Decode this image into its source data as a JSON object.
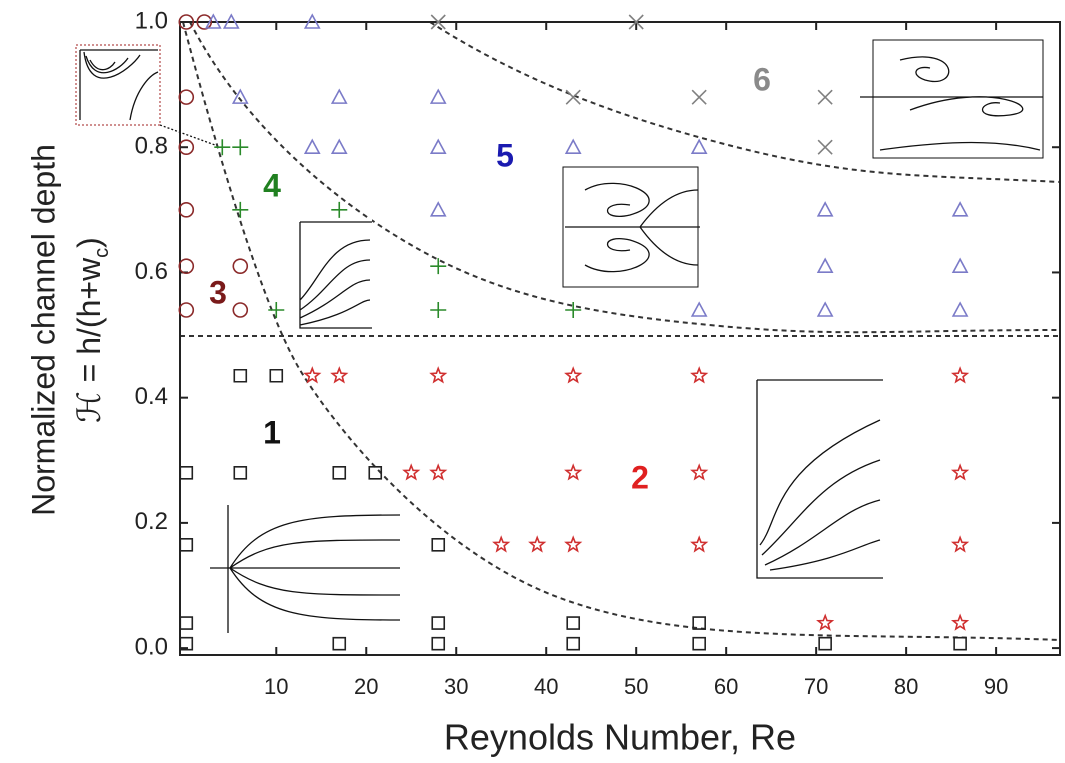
{
  "chart_data": {
    "type": "scatter",
    "xlabel": "Reynolds Number, Re",
    "ylabel": "Normalized channel depth",
    "ylabel2": {
      "main": "ℋ = h/(h+w",
      "sub": "c",
      "end": ")"
    },
    "xlim": [
      -0.7,
      97.1
    ],
    "ylim": [
      -0.011,
      1.0
    ],
    "xticks": [
      10,
      20,
      30,
      40,
      50,
      60,
      70,
      80,
      90
    ],
    "yticks": [
      {
        "value": 0,
        "label": "0.0"
      },
      {
        "value": 0.2,
        "label": "0.2"
      },
      {
        "value": 0.4,
        "label": "0.4"
      },
      {
        "value": 0.6,
        "label": "0.6"
      },
      {
        "value": 0.8,
        "label": "0.8"
      },
      {
        "value": 1,
        "label": "1.0"
      }
    ],
    "annotations": [
      {
        "text": "1",
        "color": "#111111"
      },
      {
        "text": "2",
        "color": "#e02020"
      },
      {
        "text": "3",
        "color": "#7a1a1a"
      },
      {
        "text": "4",
        "color": "#208020"
      },
      {
        "text": "5",
        "color": "#1a1ab0"
      },
      {
        "text": "6",
        "color": "#8a8a8a"
      }
    ],
    "series": [
      {
        "marker": "circle",
        "color": "#8b2a2a",
        "x": [
          0,
          0,
          0,
          0,
          0,
          0,
          2,
          6,
          6
        ],
        "y": [
          1.0,
          0.88,
          0.8,
          0.7,
          0.61,
          0.54,
          1.0,
          0.61,
          0.54
        ]
      },
      {
        "marker": "triangle",
        "color": "#7b7bc8",
        "x": [
          3,
          5,
          14,
          6,
          17,
          28,
          14,
          17,
          28,
          43,
          57,
          28,
          71,
          86,
          71,
          86,
          57,
          71,
          86
        ],
        "y": [
          1.0,
          1.0,
          1.0,
          0.88,
          0.88,
          0.88,
          0.8,
          0.8,
          0.8,
          0.8,
          0.8,
          0.7,
          0.7,
          0.7,
          0.61,
          0.61,
          0.54,
          0.54,
          0.54
        ]
      },
      {
        "marker": "cross",
        "color": "#808080",
        "x": [
          28,
          50,
          43,
          57,
          71,
          71
        ],
        "y": [
          1.0,
          1.0,
          0.88,
          0.88,
          0.88,
          0.8
        ]
      },
      {
        "marker": "plus",
        "color": "#2a8a2a",
        "x": [
          4,
          6,
          6,
          17,
          28,
          10,
          28,
          43
        ],
        "y": [
          0.8,
          0.8,
          0.7,
          0.7,
          0.61,
          0.54,
          0.54,
          0.54
        ]
      },
      {
        "marker": "star",
        "color": "#d03030",
        "x": [
          14,
          17,
          28,
          43,
          57,
          86,
          25,
          28,
          43,
          57,
          86,
          35,
          39,
          43,
          57,
          86,
          71,
          86
        ],
        "y": [
          0.435,
          0.435,
          0.435,
          0.435,
          0.435,
          0.435,
          0.28,
          0.28,
          0.28,
          0.28,
          0.28,
          0.165,
          0.165,
          0.165,
          0.165,
          0.165,
          0.04,
          0.04
        ]
      },
      {
        "marker": "square",
        "color": "#222222",
        "x": [
          6,
          10,
          0,
          6,
          17,
          21,
          0,
          28,
          0,
          28,
          43,
          57,
          0,
          17,
          28,
          43,
          57,
          71,
          86
        ],
        "y": [
          0.435,
          0.435,
          0.28,
          0.28,
          0.28,
          0.28,
          0.165,
          0.165,
          0.04,
          0.04,
          0.04,
          0.04,
          0.007,
          0.007,
          0.007,
          0.007,
          0.007,
          0.007,
          0.007
        ]
      }
    ]
  }
}
